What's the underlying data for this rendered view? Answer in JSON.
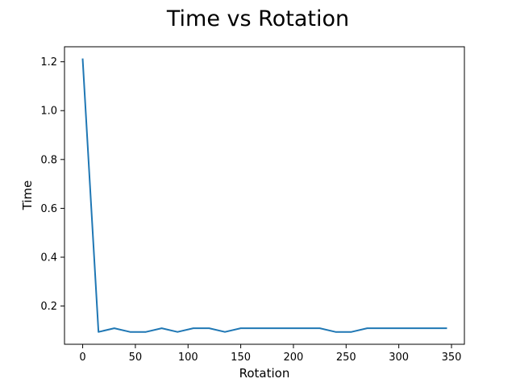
{
  "chart_data": {
    "type": "line",
    "title": "Time vs Rotation",
    "xlabel": "Rotation",
    "ylabel": "Time",
    "xlim": [
      -17.25,
      362.25
    ],
    "ylim": [
      0.0435,
      1.2615
    ],
    "xticks": [
      0,
      50,
      100,
      150,
      200,
      250,
      300,
      350
    ],
    "xtick_labels": [
      "0",
      "50",
      "100",
      "150",
      "200",
      "250",
      "300",
      "350"
    ],
    "yticks": [
      0.2,
      0.4,
      0.6,
      0.8,
      1.0,
      1.2
    ],
    "ytick_labels": [
      "0.2",
      "0.4",
      "0.6",
      "0.8",
      "1.0",
      "1.2"
    ],
    "grid": false,
    "legend": "none",
    "series": [
      {
        "color": "#1f77b4",
        "x": [
          0,
          15,
          30,
          45,
          60,
          75,
          90,
          105,
          120,
          135,
          150,
          165,
          180,
          195,
          210,
          225,
          240,
          255,
          270,
          285,
          300,
          315,
          330,
          345
        ],
        "y": [
          1.21,
          0.094,
          0.109,
          0.094,
          0.094,
          0.109,
          0.094,
          0.109,
          0.109,
          0.094,
          0.109,
          0.109,
          0.109,
          0.109,
          0.109,
          0.109,
          0.094,
          0.094,
          0.109,
          0.109,
          0.109,
          0.109,
          0.109,
          0.109
        ]
      }
    ]
  }
}
